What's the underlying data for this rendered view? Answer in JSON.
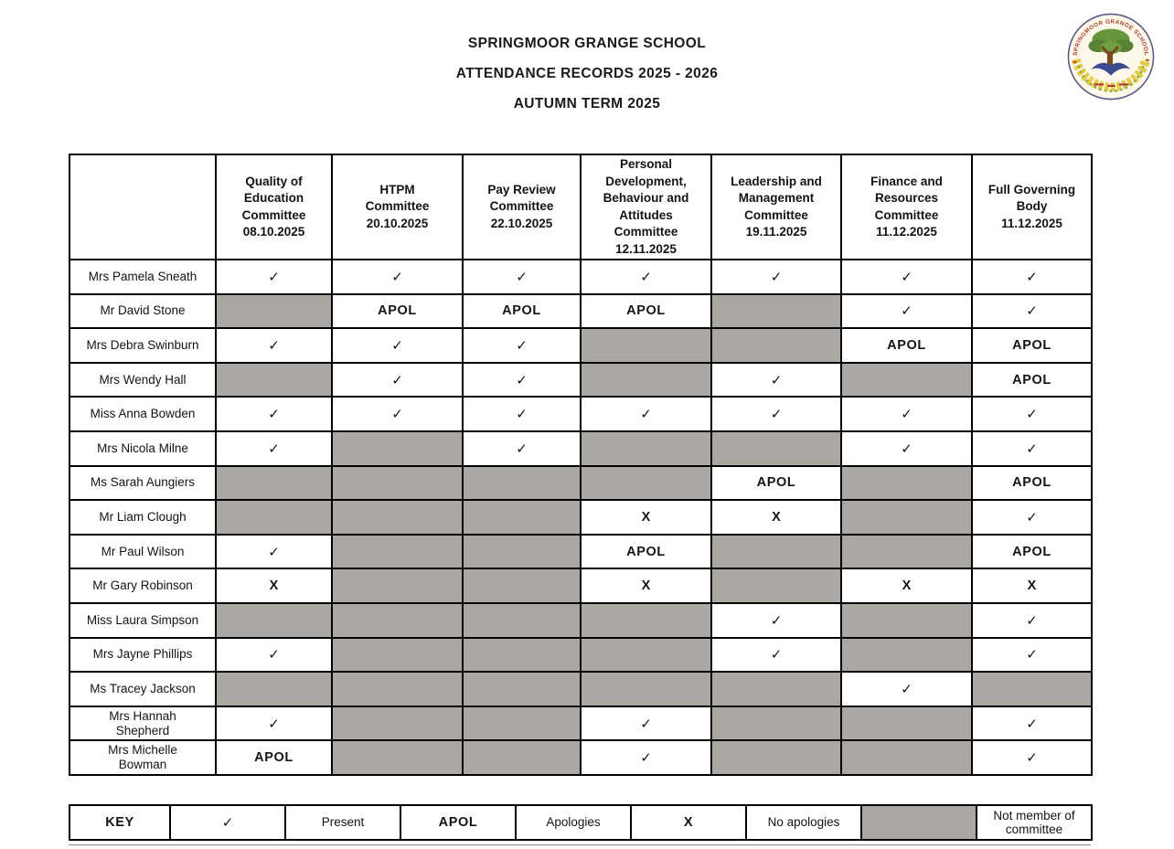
{
  "page": {
    "title_lines": [
      "SPRINGMOOR GRANGE SCHOOL",
      "ATTENDANCE RECORDS 2025 - 2026",
      "AUTUMN TERM 2025"
    ]
  },
  "logo": {
    "arc_text": "SPRINGMOOR GRANGE SCHOOL"
  },
  "attendance_table": {
    "columns": [
      {
        "label_lines": [
          "Quality of",
          "Education",
          "Committee"
        ],
        "date": "08.10.2025"
      },
      {
        "label_lines": [
          "HTPM",
          "Committee"
        ],
        "date": "20.10.2025"
      },
      {
        "label_lines": [
          "Pay Review",
          "Committee"
        ],
        "date": "22.10.2025"
      },
      {
        "label_lines": [
          "Personal",
          "Development,",
          "Behaviour and",
          "Attitudes",
          "Committee"
        ],
        "date": "12.11.2025"
      },
      {
        "label_lines": [
          "Leadership and",
          "Management",
          "Committee"
        ],
        "date": "19.11.2025"
      },
      {
        "label_lines": [
          "Finance and",
          "Resources",
          "Committee"
        ],
        "date": "11.12.2025"
      },
      {
        "label_lines": [
          "Full Governing",
          "Body"
        ],
        "date": "11.12.2025"
      }
    ],
    "symbols": {
      "present": "✓",
      "apologies": "APOL",
      "no_apologies": "X",
      "not_member": ""
    },
    "rows": [
      {
        "name": "Mrs Pamela Sneath",
        "cells": [
          "present",
          "present",
          "present",
          "present",
          "present",
          "present",
          "present"
        ]
      },
      {
        "name": "Mr David Stone",
        "cells": [
          "not_member",
          "apologies",
          "apologies",
          "apologies",
          "not_member",
          "present",
          "present"
        ]
      },
      {
        "name": "Mrs Debra Swinburn",
        "cells": [
          "present",
          "present",
          "present",
          "not_member",
          "not_member",
          "apologies",
          "apologies"
        ]
      },
      {
        "name": "Mrs Wendy Hall",
        "cells": [
          "not_member",
          "present",
          "present",
          "not_member",
          "present",
          "not_member",
          "apologies"
        ]
      },
      {
        "name": "Miss Anna Bowden",
        "cells": [
          "present",
          "present",
          "present",
          "present",
          "present",
          "present",
          "present"
        ]
      },
      {
        "name": "Mrs Nicola Milne",
        "cells": [
          "present",
          "not_member",
          "present",
          "not_member",
          "not_member",
          "present",
          "present"
        ]
      },
      {
        "name": "Ms Sarah Aungiers",
        "cells": [
          "not_member",
          "not_member",
          "not_member",
          "not_member",
          "apologies",
          "not_member",
          "apologies"
        ]
      },
      {
        "name": "Mr Liam Clough",
        "cells": [
          "not_member",
          "not_member",
          "not_member",
          "no_apologies",
          "no_apologies",
          "not_member",
          "present"
        ]
      },
      {
        "name": "Mr Paul Wilson",
        "cells": [
          "present",
          "not_member",
          "not_member",
          "apologies",
          "not_member",
          "not_member",
          "apologies"
        ]
      },
      {
        "name": "Mr Gary Robinson",
        "cells": [
          "no_apologies",
          "not_member",
          "not_member",
          "no_apologies",
          "not_member",
          "no_apologies",
          "no_apologies"
        ]
      },
      {
        "name": "Miss Laura Simpson",
        "cells": [
          "not_member",
          "not_member",
          "not_member",
          "not_member",
          "present",
          "not_member",
          "present"
        ]
      },
      {
        "name": "Mrs Jayne Phillips",
        "cells": [
          "present",
          "not_member",
          "not_member",
          "not_member",
          "present",
          "not_member",
          "present"
        ]
      },
      {
        "name": "Ms Tracey Jackson",
        "cells": [
          "not_member",
          "not_member",
          "not_member",
          "not_member",
          "not_member",
          "present",
          "not_member"
        ]
      },
      {
        "name": "Mrs Hannah\nShepherd",
        "cells": [
          "present",
          "not_member",
          "not_member",
          "present",
          "not_member",
          "not_member",
          "present"
        ]
      },
      {
        "name": "Mrs Michelle\nBowman",
        "cells": [
          "apologies",
          "not_member",
          "not_member",
          "present",
          "not_member",
          "not_member",
          "present"
        ]
      }
    ]
  },
  "key": {
    "label": "KEY",
    "entries": [
      {
        "symbol": "present",
        "meaning": "Present"
      },
      {
        "symbol": "apologies",
        "meaning": "Apologies"
      },
      {
        "symbol": "no_apologies",
        "meaning": "No apologies"
      },
      {
        "symbol": "not_member",
        "meaning": "Not member of committee"
      }
    ]
  },
  "colors": {
    "not_member_gray": "#ABA8A4",
    "logo_ring": "#555a86",
    "logo_text_red": "#b03a2e",
    "logo_yellow": "#e5cc45",
    "logo_green": "#66953c",
    "logo_blue": "#3a4b92",
    "logo_brown": "#7a4a21"
  }
}
